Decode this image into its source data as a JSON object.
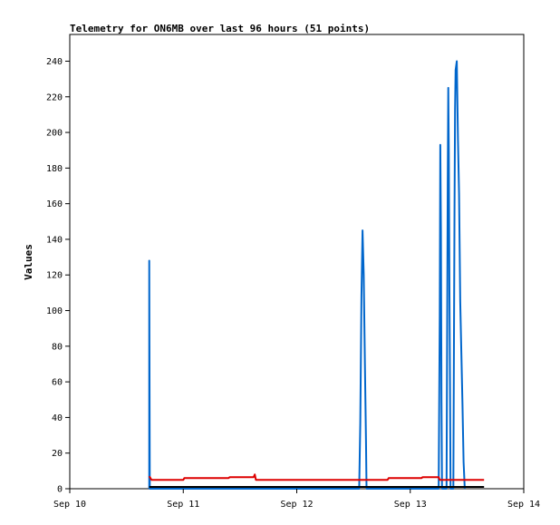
{
  "chart_data": {
    "type": "line",
    "title": "Telemetry for ON6MB over last 96 hours (51 points)",
    "xlabel": "",
    "ylabel": "Values",
    "xlim": [
      0,
      4
    ],
    "ylim": [
      0,
      255
    ],
    "x_ticks": [
      {
        "x": 0,
        "label": "Sep 10"
      },
      {
        "x": 1,
        "label": "Sep 11"
      },
      {
        "x": 2,
        "label": "Sep 12"
      },
      {
        "x": 3,
        "label": "Sep 13"
      },
      {
        "x": 4,
        "label": "Sep 14"
      }
    ],
    "y_ticks": [
      0,
      20,
      40,
      60,
      80,
      100,
      120,
      140,
      160,
      180,
      200,
      220,
      240
    ],
    "grid": false,
    "legend": "none",
    "series": [
      {
        "color": "#0066cc",
        "points": [
          [
            0.7,
            0
          ],
          [
            0.7,
            128
          ],
          [
            0.705,
            0
          ],
          [
            2.55,
            0
          ],
          [
            2.56,
            37
          ],
          [
            2.57,
            108
          ],
          [
            2.58,
            145
          ],
          [
            2.59,
            120
          ],
          [
            2.6,
            70
          ],
          [
            2.61,
            27
          ],
          [
            2.615,
            0
          ],
          [
            3.25,
            0
          ],
          [
            3.26,
            97
          ],
          [
            3.265,
            193
          ],
          [
            3.27,
            145
          ],
          [
            3.275,
            50
          ],
          [
            3.28,
            0
          ],
          [
            3.32,
            0
          ],
          [
            3.33,
            170
          ],
          [
            3.335,
            225
          ],
          [
            3.34,
            188
          ],
          [
            3.345,
            110
          ],
          [
            3.35,
            60
          ],
          [
            3.355,
            0
          ],
          [
            3.38,
            0
          ],
          [
            3.39,
            158
          ],
          [
            3.395,
            213
          ],
          [
            3.4,
            235
          ],
          [
            3.41,
            240
          ],
          [
            3.42,
            196
          ],
          [
            3.43,
            166
          ],
          [
            3.44,
            105
          ],
          [
            3.45,
            77
          ],
          [
            3.46,
            47
          ],
          [
            3.47,
            15
          ],
          [
            3.48,
            0
          ]
        ]
      },
      {
        "color": "#dd0000",
        "points": [
          [
            0.7,
            7
          ],
          [
            0.72,
            5
          ],
          [
            1.0,
            5
          ],
          [
            1.01,
            6
          ],
          [
            1.4,
            6
          ],
          [
            1.41,
            6.5
          ],
          [
            1.62,
            6.5
          ],
          [
            1.63,
            8
          ],
          [
            1.64,
            5
          ],
          [
            2.4,
            5
          ],
          [
            2.41,
            5
          ],
          [
            2.8,
            5
          ],
          [
            2.81,
            6
          ],
          [
            3.1,
            6
          ],
          [
            3.11,
            6.5
          ],
          [
            3.25,
            6.5
          ],
          [
            3.26,
            5
          ],
          [
            3.65,
            5
          ]
        ]
      },
      {
        "color": "#000000",
        "points": [
          [
            0.7,
            1
          ],
          [
            3.65,
            1
          ]
        ]
      }
    ]
  }
}
